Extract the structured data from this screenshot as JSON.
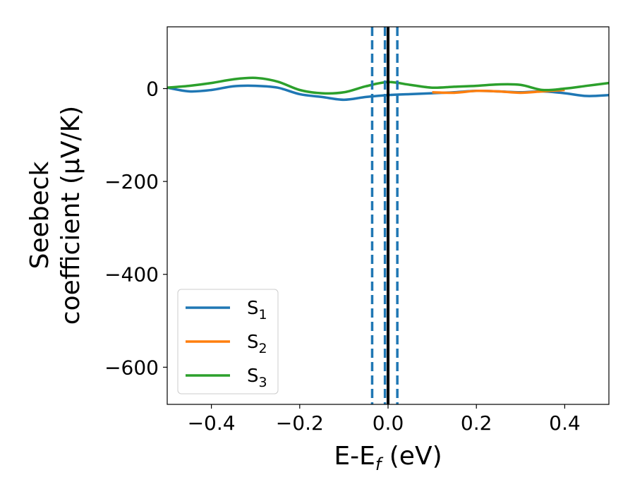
{
  "chart_data": {
    "type": "line",
    "title": "",
    "xlabel": {
      "base": "E-E",
      "sub": "f",
      "tail": " (eV)"
    },
    "ylabel": {
      "line1": "Seebeck",
      "line2": "coefficient  (μV/K)"
    },
    "xlim": [
      -0.5,
      0.5
    ],
    "ylim": [
      -680,
      133
    ],
    "xticks": [
      -0.4,
      -0.2,
      0.0,
      0.2,
      0.4
    ],
    "xtick_labels": [
      "−0.4",
      "−0.2",
      "0.0",
      "0.2",
      "0.4"
    ],
    "yticks": [
      0,
      -200,
      -400,
      -600
    ],
    "ytick_labels": [
      "0",
      "−200",
      "−400",
      "−600"
    ],
    "grid": false,
    "legend_position": "lower-left",
    "series": [
      {
        "name": "S1",
        "label_base": "S",
        "label_sub": "1",
        "color": "#1f77b4",
        "x": [
          -0.5,
          -0.45,
          -0.4,
          -0.35,
          -0.3,
          -0.25,
          -0.2,
          -0.15,
          -0.1,
          -0.05,
          0.0,
          0.05,
          0.1,
          0.15,
          0.2,
          0.25,
          0.3,
          0.35,
          0.4,
          0.45,
          0.5
        ],
        "y": [
          2,
          -6,
          -3,
          5,
          6,
          2,
          -12,
          -18,
          -24,
          -18,
          -14,
          -12,
          -10,
          -8,
          -5,
          -6,
          -8,
          -6,
          -10,
          -16,
          -14
        ]
      },
      {
        "name": "S2",
        "label_base": "S",
        "label_sub": "2",
        "color": "#ff7f0e",
        "x": [
          0.1,
          0.15,
          0.2,
          0.25,
          0.3,
          0.35,
          0.4
        ],
        "y": [
          -8,
          -9,
          -5,
          -6,
          -9,
          -6,
          -3
        ]
      },
      {
        "name": "S3",
        "label_base": "S",
        "label_sub": "3",
        "color": "#2ca02c",
        "x": [
          -0.5,
          -0.45,
          -0.4,
          -0.35,
          -0.3,
          -0.25,
          -0.2,
          -0.15,
          -0.1,
          -0.05,
          0.0,
          0.05,
          0.1,
          0.15,
          0.2,
          0.25,
          0.3,
          0.35,
          0.4,
          0.45,
          0.5
        ],
        "y": [
          2,
          6,
          12,
          20,
          23,
          15,
          -3,
          -10,
          -8,
          5,
          14,
          8,
          2,
          4,
          6,
          9,
          8,
          -3,
          0,
          6,
          12
        ]
      }
    ],
    "vlines": [
      {
        "x": 0.0,
        "style": "solid",
        "color": "#000000"
      },
      {
        "x": -0.036,
        "style": "dashed",
        "color": "#1f77b4"
      },
      {
        "x": -0.007,
        "style": "dashed",
        "color": "#1f77b4"
      },
      {
        "x": 0.021,
        "style": "dashed",
        "color": "#1f77b4"
      }
    ]
  }
}
